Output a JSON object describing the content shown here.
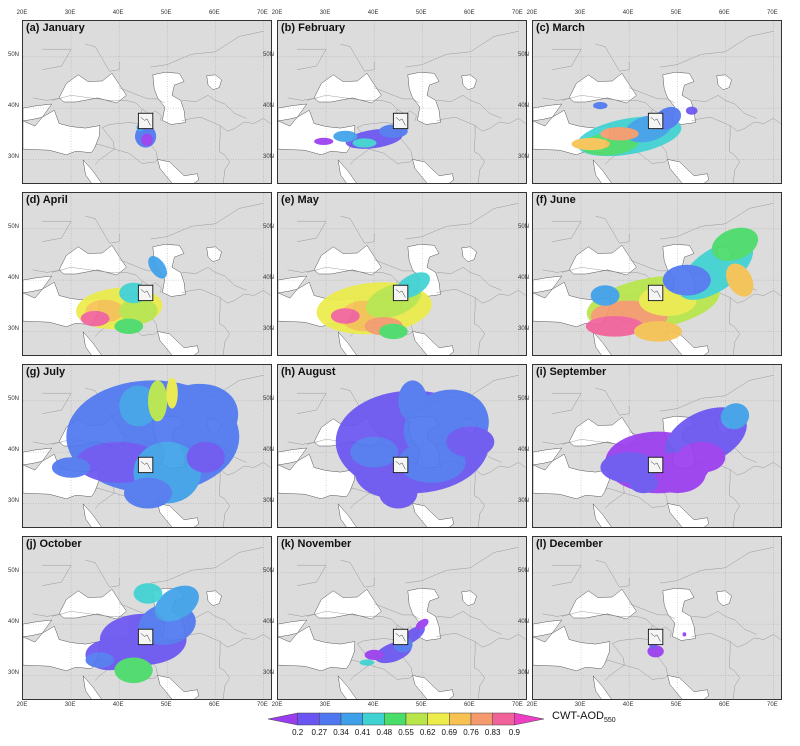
{
  "figure": {
    "lon_ticks": [
      "20E",
      "30E",
      "40E",
      "50E",
      "60E",
      "70E"
    ],
    "lat_ticks": [
      "50N",
      "40N",
      "30N"
    ],
    "lon_range": [
      20,
      72
    ],
    "lat_range": [
      25,
      57
    ],
    "source_box": {
      "lon": [
        44,
        47
      ],
      "lat": [
        36,
        39
      ]
    }
  },
  "panels": [
    {
      "label": "(a) January",
      "extent": "minimal",
      "dominant_class": "0.34"
    },
    {
      "label": "(b) February",
      "extent": "small",
      "dominant_class": "0.27"
    },
    {
      "label": "(c) March",
      "extent": "medium",
      "dominant_class": "0.48"
    },
    {
      "label": "(d) April",
      "extent": "medium",
      "dominant_class": "0.69"
    },
    {
      "label": "(e) May",
      "extent": "medium",
      "dominant_class": "0.69"
    },
    {
      "label": "(f) June",
      "extent": "large",
      "dominant_class": "0.62"
    },
    {
      "label": "(g) July",
      "extent": "very large",
      "dominant_class": "0.34"
    },
    {
      "label": "(h) August",
      "extent": "very large",
      "dominant_class": "0.27"
    },
    {
      "label": "(i) September",
      "extent": "large",
      "dominant_class": "0.2"
    },
    {
      "label": "(j) October",
      "extent": "large",
      "dominant_class": "0.27"
    },
    {
      "label": "(k) November",
      "extent": "small",
      "dominant_class": "0.27"
    },
    {
      "label": "(l) December",
      "extent": "minimal",
      "dominant_class": "0.2"
    }
  ],
  "colorbar": {
    "label": "CWT-AOD",
    "label_subscript": "550",
    "ticks": [
      "0.2",
      "0.27",
      "0.34",
      "0.41",
      "0.48",
      "0.55",
      "0.62",
      "0.69",
      "0.76",
      "0.83",
      "0.9"
    ],
    "colors": [
      "#9a3cf0",
      "#6a55f2",
      "#4f78f0",
      "#3ea0ea",
      "#3fd2d2",
      "#49dd6a",
      "#b8e64a",
      "#ecec4a",
      "#f7c252",
      "#f59a6c",
      "#f1629a",
      "#ee3ec2"
    ]
  }
}
